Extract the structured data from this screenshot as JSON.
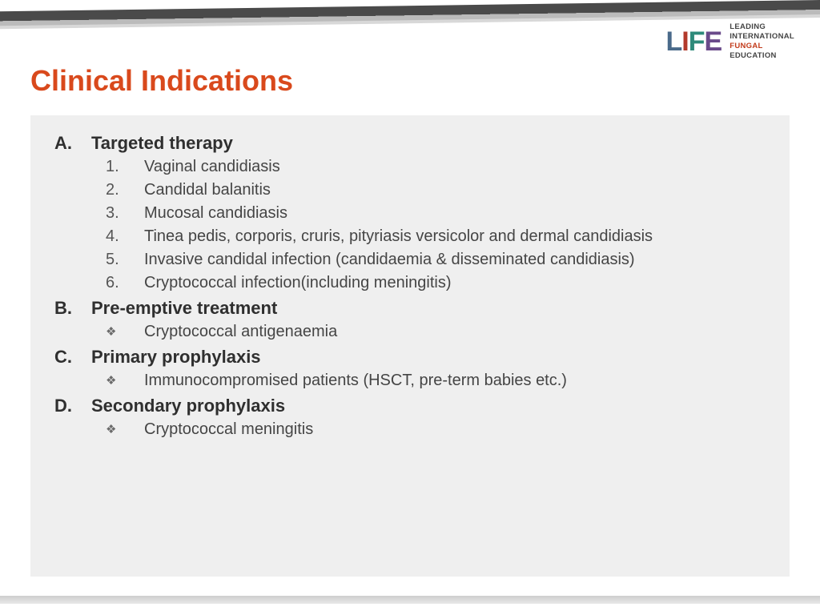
{
  "logo": {
    "letters": [
      "L",
      "I",
      "F",
      "E"
    ],
    "letter_colors": [
      "#4a6a8a",
      "#b33a2b",
      "#2e8a7a",
      "#6a4a8a"
    ],
    "line1": "LEADING",
    "line2": "INTERNATIONAL",
    "line3": "FUNGAL",
    "line4": "EDUCATION"
  },
  "title": "Clinical Indications",
  "colors": {
    "title": "#d9491c",
    "box_bg": "#efefef",
    "text": "#3c3c3c",
    "top_bar": "#4a4a4a"
  },
  "sections": [
    {
      "letter": "A.",
      "heading": "Targeted therapy",
      "marker_type": "number",
      "items": [
        "Vaginal candidiasis",
        "Candidal balanitis",
        "Mucosal candidiasis",
        "Tinea pedis, corporis, cruris, pityriasis versicolor and dermal candidiasis",
        "Invasive candidal infection (candidaemia & disseminated candidiasis)",
        "Cryptococcal infection(including meningitis)"
      ]
    },
    {
      "letter": "B.",
      "heading": "Pre-emptive treatment",
      "marker_type": "diamond",
      "items": [
        "Cryptococcal antigenaemia"
      ]
    },
    {
      "letter": "C.",
      "heading": "Primary prophylaxis",
      "marker_type": "diamond",
      "items": [
        "Immunocompromised patients (HSCT, pre-term babies etc.)"
      ]
    },
    {
      "letter": "D.",
      "heading": "Secondary prophylaxis",
      "marker_type": "diamond",
      "items": [
        "Cryptococcal meningitis"
      ]
    }
  ]
}
